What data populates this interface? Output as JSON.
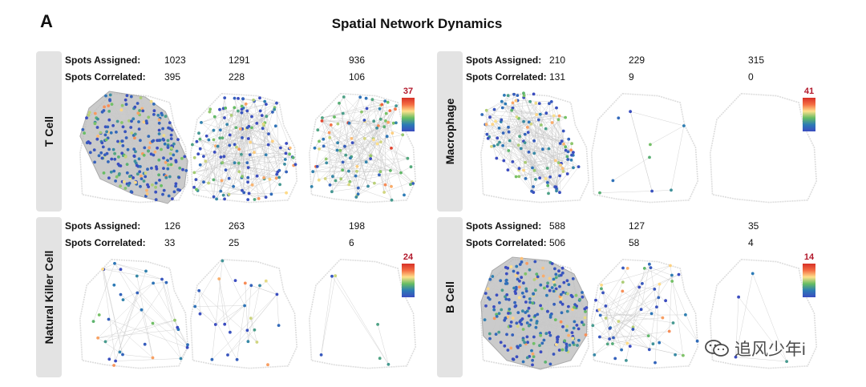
{
  "figure": {
    "panel_letter": "A",
    "title": "Spatial Network Dynamics",
    "spots_assigned_label": "Spots Assigned:",
    "spots_correlated_label": "Spots Correlated:"
  },
  "watermark": {
    "text": "追风少年i",
    "icon": "wechat-icon"
  },
  "colors": {
    "node_low": "#3b4cc0",
    "node_mid": "#66bd63",
    "node_high": "#d73027",
    "edge": "#c8c8c8",
    "outline": "#dddddd",
    "label_bg": "#e3e3e3"
  },
  "chart_data": [
    {
      "type": "network",
      "cell_type": "T Cell",
      "assigned": [
        1023,
        1291,
        936
      ],
      "correlated": [
        395,
        228,
        106
      ],
      "colorbar_max": 37
    },
    {
      "type": "network",
      "cell_type": "Macrophage",
      "assigned": [
        210,
        229,
        315
      ],
      "correlated": [
        131,
        9,
        0
      ],
      "colorbar_max": 41
    },
    {
      "type": "network",
      "cell_type": "Natural Killer Cell",
      "assigned": [
        126,
        263,
        198
      ],
      "correlated": [
        33,
        25,
        6
      ],
      "colorbar_max": 24
    },
    {
      "type": "network",
      "cell_type": "B Cell",
      "assigned": [
        588,
        127,
        35
      ],
      "correlated": [
        506,
        58,
        4
      ],
      "colorbar_max": 14
    }
  ]
}
